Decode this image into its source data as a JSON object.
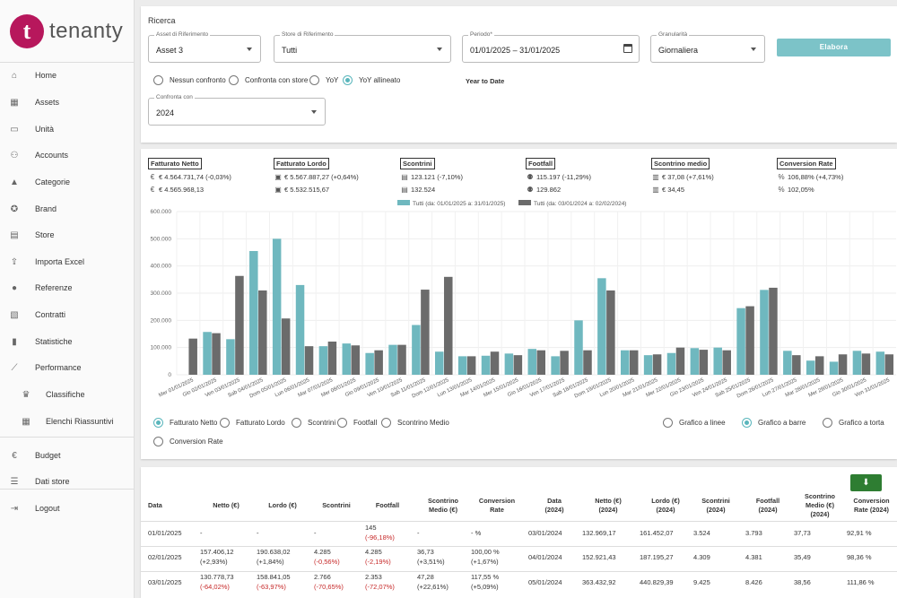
{
  "brand": {
    "mark": "t",
    "name": "tenanty"
  },
  "sidebar": {
    "items": [
      {
        "label": "Home",
        "icon": "home-icon",
        "glyph": "⌂"
      },
      {
        "label": "Assets",
        "icon": "building-icon",
        "glyph": "▦"
      },
      {
        "label": "Unità",
        "icon": "store-unit-icon",
        "glyph": "▭"
      },
      {
        "label": "Accounts",
        "icon": "accounts-icon",
        "glyph": "⚇"
      },
      {
        "label": "Categorie",
        "icon": "categories-icon",
        "glyph": "▲"
      },
      {
        "label": "Brand",
        "icon": "brand-icon",
        "glyph": "✪"
      },
      {
        "label": "Store",
        "icon": "store-icon",
        "glyph": "▤"
      },
      {
        "label": "Importa Excel",
        "icon": "upload-icon",
        "glyph": "⇪"
      },
      {
        "label": "Referenze",
        "icon": "person-icon",
        "glyph": "●"
      },
      {
        "label": "Contratti",
        "icon": "contracts-icon",
        "glyph": "▧"
      },
      {
        "label": "Statistiche",
        "icon": "bar-chart-icon",
        "glyph": "▮"
      },
      {
        "label": "Performance",
        "icon": "trending-icon",
        "glyph": "⟋"
      },
      {
        "label": "Classifiche",
        "icon": "trophy-icon",
        "glyph": "♛"
      },
      {
        "label": "Elenchi Riassuntivi",
        "icon": "table-icon",
        "glyph": "▦"
      },
      {
        "label": "Budget",
        "icon": "euro-icon",
        "glyph": "€"
      },
      {
        "label": "Dati store",
        "icon": "list-icon",
        "glyph": "☰"
      },
      {
        "label": "Logout",
        "icon": "logout-icon",
        "glyph": "⇥"
      }
    ]
  },
  "search": {
    "title": "Ricerca",
    "asset": {
      "label": "Asset di Riferimento",
      "value": "Asset 3"
    },
    "store": {
      "label": "Store di Riferimento",
      "value": "Tutti"
    },
    "period": {
      "label": "Periodo*",
      "from": "01/01/2025",
      "sep": "–",
      "to": "31/01/2025"
    },
    "granularity": {
      "label": "Granularità",
      "value": "Giornaliera"
    },
    "submit": "Elabora",
    "compare_options": [
      "Nessun confronto",
      "Confronta con store",
      "YoY",
      "YoY allineato"
    ],
    "compare_selected": 3,
    "ytd": "Year to Date",
    "compare_with": {
      "label": "Confronta con",
      "value": "2024"
    }
  },
  "kpis": [
    {
      "title": "Fatturato Netto",
      "current": "€ 4.564.731,74 (-0,03%)",
      "previous": "€ 4.565.968,13",
      "icon": "euro-circle-icon",
      "g": "€"
    },
    {
      "title": "Fatturato Lordo",
      "current": "€ 5.567.887,27 (+0,64%)",
      "previous": "€ 5.532.515,67",
      "icon": "cash-icon",
      "g": "▣"
    },
    {
      "title": "Scontrini",
      "current": "123.121 (-7,10%)",
      "previous": "132.524",
      "icon": "receipt-icon",
      "g": "▤"
    },
    {
      "title": "Footfall",
      "current": "115.197 (-11,29%)",
      "previous": "129.862",
      "icon": "people-icon",
      "g": "⚉"
    },
    {
      "title": "Scontrino medio",
      "current": "€ 37,08 (+7,61%)",
      "previous": "€ 34,45",
      "icon": "receipt-euro-icon",
      "g": "▥"
    },
    {
      "title": "Conversion Rate",
      "current": "106,88% (+4,73%)",
      "previous": "102,05%",
      "icon": "percent-icon",
      "g": "%"
    }
  ],
  "chart_options": {
    "metrics": [
      "Fatturato Netto",
      "Fatturato Lordo",
      "Scontrini",
      "Footfall",
      "Scontrino Medio",
      "Conversion Rate"
    ],
    "metric_selected": 0,
    "chart_types": [
      "Grafico a linee",
      "Grafico a barre",
      "Grafico a torta"
    ],
    "type_selected": 1
  },
  "colors": {
    "accent": "#5ab6bc",
    "series_current": "#6fb8bf",
    "series_previous": "#6b6b6b",
    "negative": "#c62828",
    "download": "#2e7d32"
  },
  "chart_data": {
    "type": "bar",
    "categories": [
      "Mer 01/01/2025",
      "Gio 02/01/2025",
      "Ven 03/01/2025",
      "Sab 04/01/2025",
      "Dom 05/01/2025",
      "Lun 06/01/2025",
      "Mar 07/01/2025",
      "Mer 08/01/2025",
      "Gio 09/01/2025",
      "Ven 10/01/2025",
      "Sab 11/01/2025",
      "Dom 12/01/2025",
      "Lun 13/01/2025",
      "Mar 14/01/2025",
      "Mer 15/01/2025",
      "Gio 16/01/2025",
      "Ven 17/01/2025",
      "Sab 18/01/2025",
      "Dom 19/01/2025",
      "Lun 20/01/2025",
      "Mar 21/01/2025",
      "Mer 22/01/2025",
      "Gio 23/01/2025",
      "Ven 24/01/2025",
      "Sab 25/01/2025",
      "Dom 26/01/2025",
      "Lun 27/01/2025",
      "Mar 28/01/2025",
      "Mer 29/01/2025",
      "Gio 30/01/2025",
      "Ven 31/01/2025"
    ],
    "series": [
      {
        "name": "Tutti (da: 01/01/2025 a: 31/01/2025)",
        "values": [
          0,
          157406,
          130779,
          455000,
          500000,
          330000,
          105000,
          115000,
          80000,
          110000,
          183000,
          85000,
          68000,
          70000,
          78000,
          95000,
          68000,
          200000,
          355000,
          90000,
          72000,
          80000,
          98000,
          100000,
          245000,
          312000,
          88000,
          52000,
          48000,
          88000,
          85000
        ]
      },
      {
        "name": "Tutti (da: 03/01/2024 a: 02/02/2024)",
        "values": [
          132969,
          152921,
          363433,
          310000,
          207000,
          105000,
          122000,
          108000,
          90000,
          110000,
          313000,
          360000,
          68000,
          85000,
          72000,
          90000,
          88000,
          90000,
          310000,
          90000,
          75000,
          100000,
          92000,
          90000,
          252000,
          320000,
          72000,
          68000,
          75000,
          78000,
          75000
        ]
      }
    ],
    "ylim": [
      0,
      600000
    ],
    "yticks": [
      "0",
      "100.000",
      "200.000",
      "300.000",
      "400.000",
      "500.000",
      "600.000"
    ],
    "legend": "top-center"
  },
  "table": {
    "download_icon": "download-icon",
    "headers": [
      "Data",
      "Netto (€)",
      "Lordo (€)",
      "Scontrini",
      "Footfall",
      "Scontrino Medio (€)",
      "Conversion Rate",
      "Data (2024)",
      "Netto (€) (2024)",
      "Lordo (€) (2024)",
      "Scontrini (2024)",
      "Footfall (2024)",
      "Scontrino Medio (€) (2024)",
      "Conversion Rate (2024)"
    ],
    "rows": [
      [
        [
          "01/01/2025",
          ""
        ],
        [
          "-",
          ""
        ],
        [
          "-",
          ""
        ],
        [
          "-",
          ""
        ],
        [
          "145",
          "(-96,18%)"
        ],
        [
          "-",
          ""
        ],
        [
          "- %",
          ""
        ],
        [
          "03/01/2024",
          ""
        ],
        [
          "132.969,17",
          ""
        ],
        [
          "161.452,07",
          ""
        ],
        [
          "3.524",
          ""
        ],
        [
          "3.793",
          ""
        ],
        [
          "37,73",
          ""
        ],
        [
          "92,91 %",
          ""
        ]
      ],
      [
        [
          "02/01/2025",
          ""
        ],
        [
          "157.406,12",
          "(+2,93%)"
        ],
        [
          "190.638,02",
          "(+1,84%)"
        ],
        [
          "4.285",
          "(-0,56%)"
        ],
        [
          "4.285",
          "(-2,19%)"
        ],
        [
          "36,73",
          "(+3,51%)"
        ],
        [
          "100,00 %",
          "(+1,67%)"
        ],
        [
          "04/01/2024",
          ""
        ],
        [
          "152.921,43",
          ""
        ],
        [
          "187.195,27",
          ""
        ],
        [
          "4.309",
          ""
        ],
        [
          "4.381",
          ""
        ],
        [
          "35,49",
          ""
        ],
        [
          "98,36 %",
          ""
        ]
      ],
      [
        [
          "03/01/2025",
          ""
        ],
        [
          "130.778,73",
          "(-64,02%)"
        ],
        [
          "158.841,05",
          "(-63,97%)"
        ],
        [
          "2.766",
          "(-70,65%)"
        ],
        [
          "2.353",
          "(-72,07%)"
        ],
        [
          "47,28",
          "(+22,61%)"
        ],
        [
          "117,55 %",
          "(+5,09%)"
        ],
        [
          "05/01/2024",
          ""
        ],
        [
          "363.432,92",
          ""
        ],
        [
          "440.829,39",
          ""
        ],
        [
          "9.425",
          ""
        ],
        [
          "8.426",
          ""
        ],
        [
          "38,56",
          ""
        ],
        [
          "111,86 %",
          ""
        ]
      ]
    ]
  }
}
